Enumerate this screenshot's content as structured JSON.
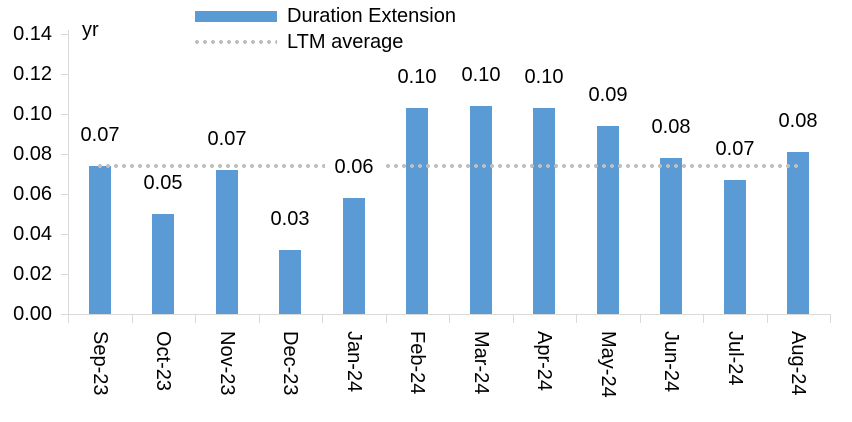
{
  "chart": {
    "unit": "yr",
    "legend": [
      {
        "label": "Duration Extension",
        "type": "bar"
      },
      {
        "label": "LTM average",
        "type": "dotted-line"
      }
    ]
  },
  "chart_data": {
    "type": "bar",
    "title": "",
    "xlabel": "",
    "ylabel": "yr",
    "ylim": [
      0,
      0.14
    ],
    "y_ticks": [
      "0.00",
      "0.02",
      "0.04",
      "0.06",
      "0.08",
      "0.10",
      "0.12",
      "0.14"
    ],
    "grid": false,
    "legend_position": "top",
    "categories": [
      "Sep-23",
      "Oct-23",
      "Nov-23",
      "Dec-23",
      "Jan-24",
      "Feb-24",
      "Mar-24",
      "Apr-24",
      "May-24",
      "Jun-24",
      "Jul-24",
      "Aug-24"
    ],
    "series": [
      {
        "name": "Duration Extension",
        "type": "bar",
        "values": [
          0.074,
          0.05,
          0.072,
          0.032,
          0.058,
          0.103,
          0.104,
          0.103,
          0.094,
          0.078,
          0.067,
          0.081
        ],
        "labels": [
          "0.07",
          "0.05",
          "0.07",
          "0.03",
          "0.06",
          "0.10",
          "0.10",
          "0.10",
          "0.09",
          "0.08",
          "0.07",
          "0.08"
        ]
      },
      {
        "name": "LTM average",
        "type": "line",
        "style": "dotted",
        "value": 0.074
      }
    ]
  },
  "colors": {
    "bar": "#5B9BD5",
    "dotted_line": "#BFBFBF",
    "axis": "#D9D9D9",
    "text": "#000000",
    "background": "#FFFFFF"
  }
}
